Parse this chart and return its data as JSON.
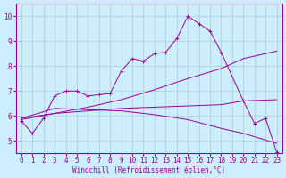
{
  "xlabel": "Windchill (Refroidissement éolien,°C)",
  "background_color": "#cceeff",
  "grid_color": "#aacccc",
  "line_color": "#990099",
  "xlim": [
    -0.5,
    23.5
  ],
  "ylim": [
    4.5,
    10.5
  ],
  "yticks": [
    5,
    6,
    7,
    8,
    9,
    10
  ],
  "xticks": [
    0,
    1,
    2,
    3,
    4,
    5,
    6,
    7,
    8,
    9,
    10,
    11,
    12,
    13,
    14,
    15,
    16,
    17,
    18,
    19,
    20,
    21,
    22,
    23
  ],
  "line1_x": [
    0,
    1,
    2,
    3,
    4,
    5,
    6,
    7,
    8,
    9,
    10,
    11,
    12,
    13,
    14,
    15,
    16,
    17,
    18,
    20,
    21,
    22,
    23
  ],
  "line1_y": [
    5.8,
    5.3,
    5.9,
    6.8,
    7.0,
    7.0,
    6.8,
    6.85,
    6.9,
    7.8,
    8.3,
    8.2,
    8.5,
    8.55,
    9.1,
    10.0,
    9.7,
    9.4,
    8.55,
    6.6,
    5.7,
    5.9,
    4.55
  ],
  "line2_x": [
    0,
    3,
    6,
    9,
    12,
    15,
    18,
    20,
    23
  ],
  "line2_y": [
    5.85,
    6.1,
    6.35,
    6.65,
    7.05,
    7.5,
    7.9,
    8.3,
    8.6
  ],
  "line3_x": [
    0,
    3,
    6,
    9,
    12,
    15,
    18,
    20,
    23
  ],
  "line3_y": [
    5.9,
    6.1,
    6.2,
    6.3,
    6.35,
    6.4,
    6.45,
    6.6,
    6.65
  ],
  "line4_x": [
    0,
    3,
    6,
    9,
    12,
    15,
    18,
    20,
    23
  ],
  "line4_y": [
    5.9,
    6.3,
    6.25,
    6.2,
    6.05,
    5.85,
    5.5,
    5.3,
    4.9
  ]
}
